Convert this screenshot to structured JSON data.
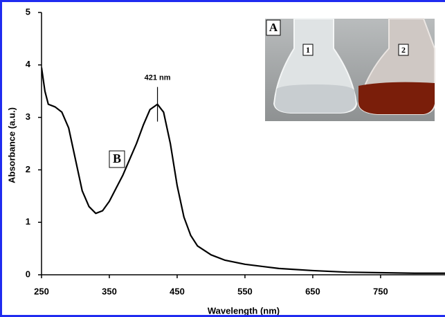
{
  "chart_data": {
    "type": "line",
    "x_label": "Wavelength (nm)",
    "y_label": "Absorbance (a.u.)",
    "x": [
      250,
      255,
      260,
      270,
      280,
      290,
      300,
      310,
      320,
      330,
      340,
      350,
      360,
      370,
      380,
      390,
      400,
      410,
      421,
      430,
      440,
      450,
      460,
      470,
      480,
      500,
      520,
      550,
      600,
      650,
      700,
      750,
      800,
      845
    ],
    "values": [
      3.95,
      3.5,
      3.25,
      3.2,
      3.1,
      2.8,
      2.2,
      1.6,
      1.3,
      1.17,
      1.22,
      1.4,
      1.65,
      1.9,
      2.2,
      2.5,
      2.85,
      3.15,
      3.25,
      3.1,
      2.5,
      1.7,
      1.1,
      0.75,
      0.55,
      0.38,
      0.28,
      0.2,
      0.12,
      0.08,
      0.05,
      0.04,
      0.03,
      0.03
    ],
    "color": "#000000",
    "xlim": [
      250,
      845
    ],
    "ylim": [
      0,
      5
    ],
    "xticks": [
      250,
      350,
      450,
      550,
      650,
      750
    ],
    "yticks": [
      0,
      1,
      2,
      3,
      4,
      5
    ],
    "grid": false,
    "peak": {
      "label": "421 nm",
      "x": 421,
      "y": 3.25
    },
    "curve_label": "B",
    "inset": {
      "label": "A",
      "flasks": [
        "1",
        "2"
      ]
    }
  }
}
